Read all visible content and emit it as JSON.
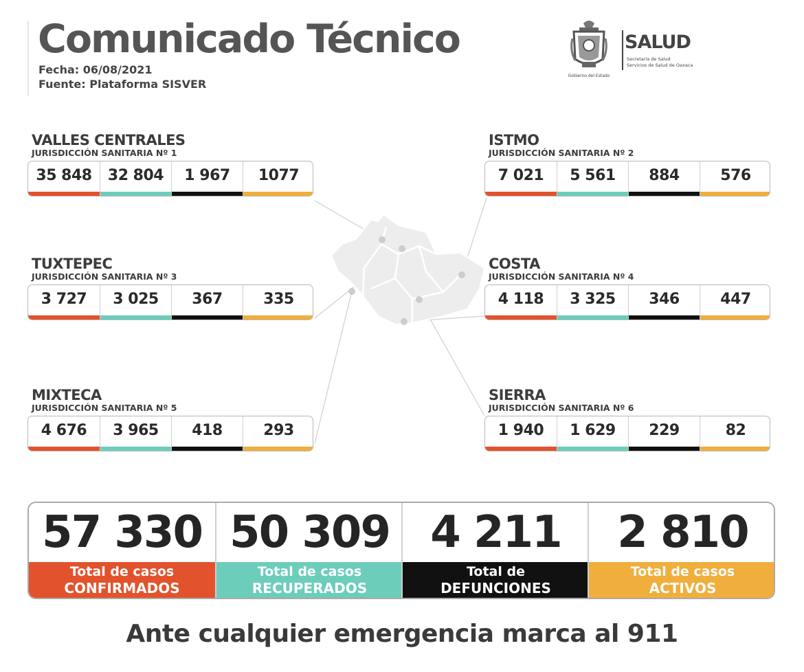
{
  "header": {
    "title": "Comunicado Técnico",
    "fecha": "Fecha: 06/08/2021",
    "fuente": "Fuente: Plataforma SISVER"
  },
  "logo": {
    "salud": "SALUD",
    "line1": "Secretaría de Salud",
    "line2": "Servicios de Salud de Oaxaca",
    "gobierno": "Gobierno del Estado"
  },
  "colors": {
    "confirmados": "#e2522c",
    "recuperados": "#6ccdbb",
    "defunciones": "#111111",
    "activos": "#f0ae3c"
  },
  "regions": [
    {
      "name": "VALLES CENTRALES",
      "sub": "JURISDICCIÓN SANITARIA Nº 1",
      "values": [
        "35 848",
        "32 804",
        "1 967",
        "1077"
      ]
    },
    {
      "name": "ISTMO",
      "sub": "JURISDICCIÓN SANITARIA Nº 2",
      "values": [
        "7 021",
        "5 561",
        "884",
        "576"
      ]
    },
    {
      "name": "TUXTEPEC",
      "sub": "JURISDICCIÓN SANITARIA Nº 3",
      "values": [
        "3 727",
        "3 025",
        "367",
        "335"
      ]
    },
    {
      "name": "COSTA",
      "sub": "JURISDICCIÓN SANITARIA Nº 4",
      "values": [
        "4 118",
        "3 325",
        "346",
        "447"
      ]
    },
    {
      "name": "MIXTECA",
      "sub": "JURISDICCIÓN SANITARIA Nº 5",
      "values": [
        "4 676",
        "3 965",
        "418",
        "293"
      ]
    },
    {
      "name": "SIERRA",
      "sub": "JURISDICCIÓN SANITARIA Nº 6",
      "values": [
        "1 940",
        "1 629",
        "229",
        "82"
      ]
    }
  ],
  "totals": [
    {
      "value": "57 330",
      "line1": "Total de casos",
      "line2": "CONFIRMADOS"
    },
    {
      "value": "50 309",
      "line1": "Total de casos",
      "line2": "RECUPERADOS"
    },
    {
      "value": "4 211",
      "line1": "Total de",
      "line2": "DEFUNCIONES"
    },
    {
      "value": "2 810",
      "line1": "Total de casos",
      "line2": "ACTIVOS"
    }
  ],
  "footer": "Ante cualquier emergencia marca al 911"
}
